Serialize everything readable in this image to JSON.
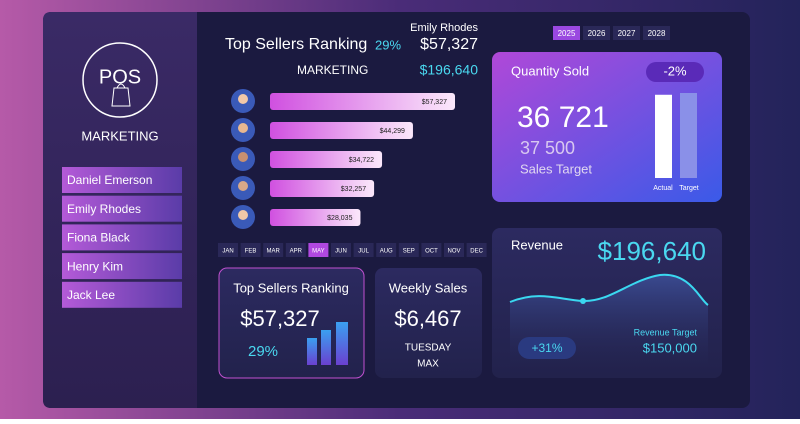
{
  "sidebar": {
    "logo": "POS",
    "department": "MARKETING",
    "names": [
      "Daniel Emerson",
      "Emily Rhodes",
      "Fiona Black",
      "Henry Kim",
      "Jack Lee"
    ]
  },
  "header": {
    "title": "Top Sellers Ranking",
    "percent": "29%",
    "seller": "Emily Rhodes",
    "seller_sales": "$57,327",
    "department": "MARKETING",
    "department_sales": "$196,640"
  },
  "ranking": [
    {
      "value": 57327,
      "label": "$57,327"
    },
    {
      "value": 44299,
      "label": "$44,299"
    },
    {
      "value": 34722,
      "label": "$34,722"
    },
    {
      "value": 32257,
      "label": "$32,257"
    },
    {
      "value": 28035,
      "label": "$28,035"
    }
  ],
  "months": {
    "items": [
      "JAN",
      "FEB",
      "MAR",
      "APR",
      "MAY",
      "JUN",
      "JUL",
      "AUG",
      "SEP",
      "OCT",
      "NOV",
      "DEC"
    ],
    "selected": 4
  },
  "years": {
    "items": [
      "2025",
      "2026",
      "2027",
      "2028"
    ],
    "selected": 0
  },
  "quantity": {
    "title": "Quantity Sold",
    "change": "-2%",
    "actual": {
      "value": 36721,
      "label": "36 721"
    },
    "target": {
      "value": 37500,
      "label": "37 500"
    },
    "target_caption": "Sales Target",
    "bar_labels": [
      "Actual",
      "Target"
    ]
  },
  "revenue": {
    "title": "Revenue",
    "value": "$196,640",
    "change": "+31%",
    "target_caption": "Revenue Target",
    "target": "$150,000"
  },
  "top_card": {
    "title": "Top Sellers Ranking",
    "value": "$57,327",
    "percent": "29%"
  },
  "weekly": {
    "title": "Weekly Sales",
    "value": "$6,467",
    "day": "TUESDAY",
    "note": "MAX"
  }
}
